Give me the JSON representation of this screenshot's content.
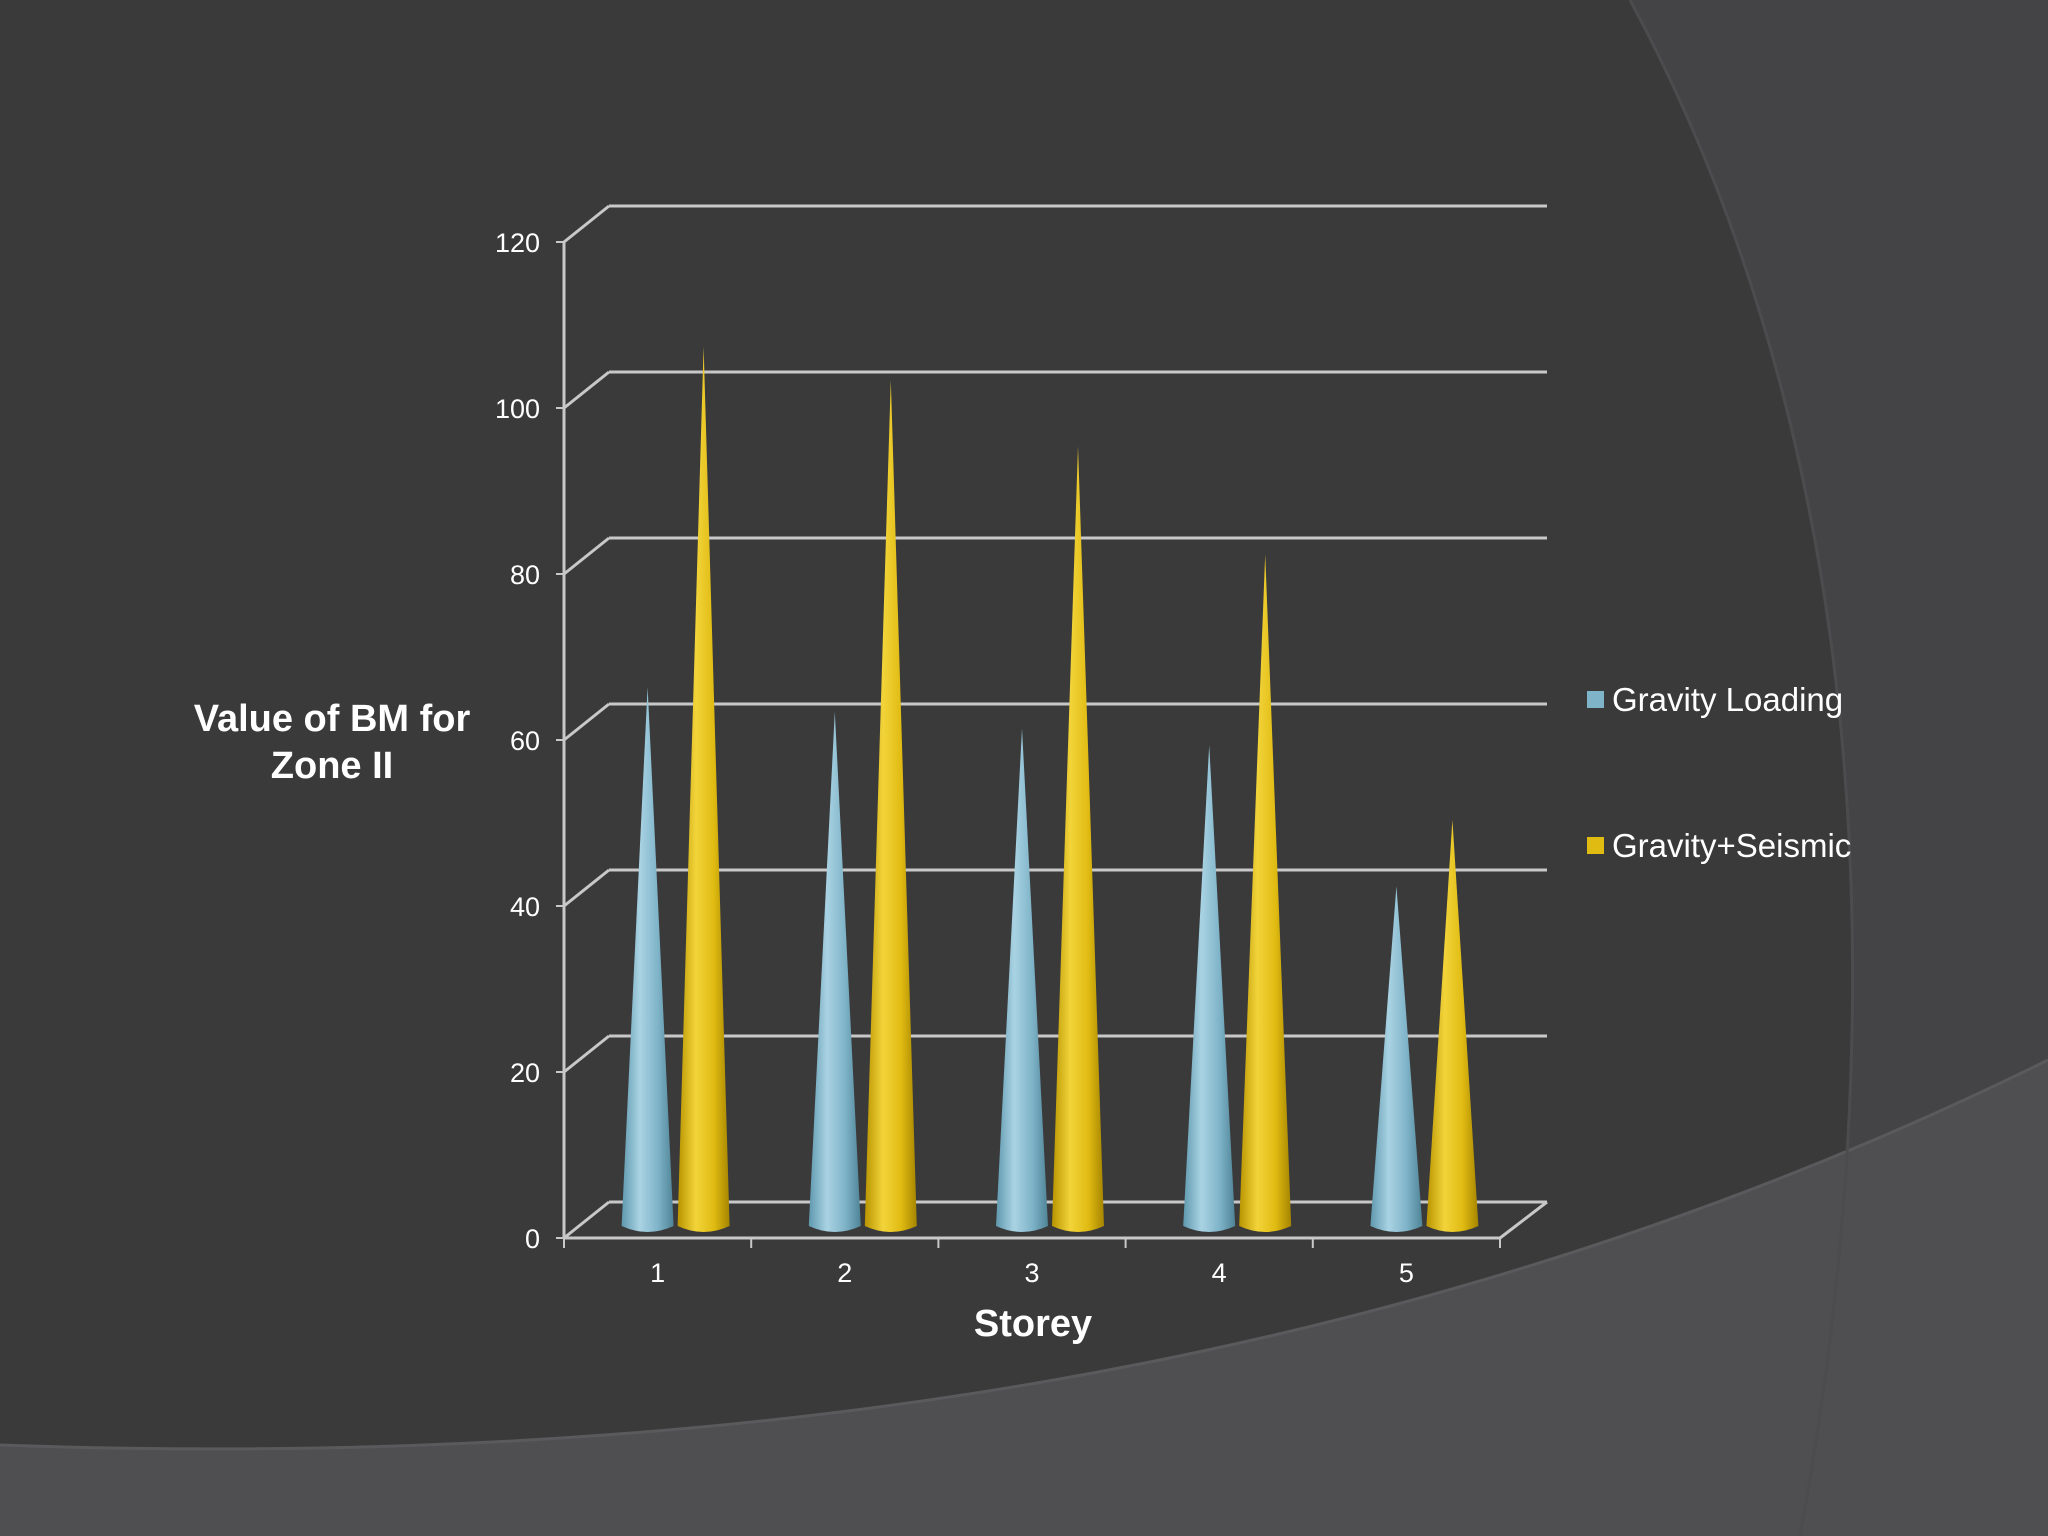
{
  "colors": {
    "background": "#3a3a3b",
    "background_light": "#4f4f51",
    "gridline": "#c8c8c8",
    "gravity_loading": "#7fb3c8",
    "gravity_seismic": "#e0bb12",
    "text": "#ffffff"
  },
  "chart_data": {
    "type": "bar",
    "style": "3d-cone",
    "title": "",
    "xlabel": "Storey",
    "ylabel_lines": [
      "Value of BM for",
      "Zone II"
    ],
    "categories": [
      "1",
      "2",
      "3",
      "4",
      "5"
    ],
    "ylim": [
      0,
      120
    ],
    "yticks": [
      0,
      20,
      40,
      60,
      80,
      100,
      120
    ],
    "grid": true,
    "legend_position": "right",
    "series": [
      {
        "name": "Gravity Loading",
        "color": "#7fb3c8",
        "values": [
          64,
          61,
          59,
          57,
          40
        ]
      },
      {
        "name": "Gravity+Seismic",
        "color": "#e0bb12",
        "values": [
          105,
          101,
          93,
          80,
          48
        ]
      }
    ]
  }
}
